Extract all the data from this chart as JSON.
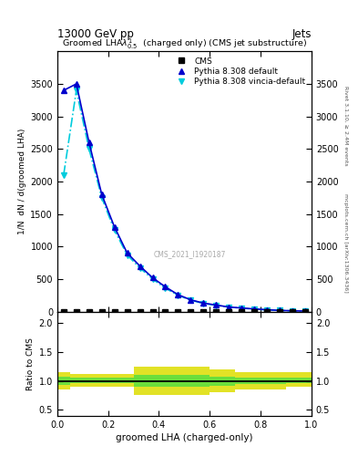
{
  "title_top": "13000 GeV pp",
  "title_right": "Jets",
  "plot_title": "Groomed LHA$\\lambda^1_{0.5}$  (charged only) (CMS jet substructure)",
  "xlabel": "groomed LHA (charged-only)",
  "ylabel_main": "1/N  dN / d(groomed LHA)",
  "ylabel_ratio": "Ratio to CMS",
  "right_label_top": "Rivet 3.1.10, ≥ 2.4M events",
  "right_label_bottom": "mcplots.cern.ch [arXiv:1306.3436]",
  "watermark": "CMS_2021_I1920187",
  "x_data": [
    0.025,
    0.075,
    0.125,
    0.175,
    0.225,
    0.275,
    0.325,
    0.375,
    0.425,
    0.475,
    0.525,
    0.575,
    0.625,
    0.675,
    0.725,
    0.775,
    0.825,
    0.875,
    0.925,
    0.975
  ],
  "cms_y": [
    0,
    0,
    0,
    0,
    0,
    0,
    0,
    0,
    0,
    0,
    0,
    0,
    0,
    0,
    0,
    0,
    0,
    0,
    0,
    0
  ],
  "pythia_default_y": [
    3400,
    3500,
    2600,
    1800,
    1300,
    900,
    700,
    520,
    380,
    260,
    180,
    130,
    100,
    70,
    55,
    40,
    28,
    18,
    12,
    8
  ],
  "pythia_vincia_y": [
    2100,
    3400,
    2500,
    1750,
    1250,
    870,
    670,
    500,
    360,
    250,
    175,
    125,
    95,
    68,
    52,
    38,
    26,
    17,
    11,
    7
  ],
  "yellow_band_lo": [
    0.85,
    0.9,
    0.9,
    0.9,
    0.9,
    0.9,
    0.75,
    0.75,
    0.75,
    0.75,
    0.75,
    0.75,
    0.8,
    0.8,
    0.85,
    0.85,
    0.85,
    0.85,
    0.9,
    0.9
  ],
  "yellow_band_hi": [
    1.15,
    1.12,
    1.12,
    1.12,
    1.12,
    1.12,
    1.25,
    1.25,
    1.25,
    1.25,
    1.25,
    1.25,
    1.2,
    1.2,
    1.15,
    1.15,
    1.15,
    1.15,
    1.15,
    1.15
  ],
  "green_band_lo": [
    0.93,
    0.97,
    0.97,
    0.97,
    0.97,
    0.97,
    0.9,
    0.9,
    0.9,
    0.9,
    0.9,
    0.9,
    0.92,
    0.92,
    0.94,
    0.94,
    0.94,
    0.94,
    0.97,
    0.97
  ],
  "green_band_hi": [
    1.07,
    1.05,
    1.05,
    1.05,
    1.05,
    1.05,
    1.1,
    1.1,
    1.1,
    1.1,
    1.1,
    1.1,
    1.08,
    1.08,
    1.06,
    1.06,
    1.06,
    1.06,
    1.05,
    1.05
  ],
  "color_cms": "#000000",
  "color_pythia_default": "#0000cc",
  "color_pythia_vincia": "#00ccdd",
  "color_green_band": "#44dd44",
  "color_yellow_band": "#dddd00",
  "xlim": [
    0,
    1
  ],
  "ylim_main": [
    0,
    4000
  ],
  "ylim_ratio": [
    0.4,
    2.2
  ],
  "yticks_main": [
    0,
    500,
    1000,
    1500,
    2000,
    2500,
    3000,
    3500
  ],
  "yticks_ratio": [
    0.5,
    1.0,
    1.5,
    2.0
  ],
  "fig_width": 3.93,
  "fig_height": 5.12,
  "dpi": 100
}
